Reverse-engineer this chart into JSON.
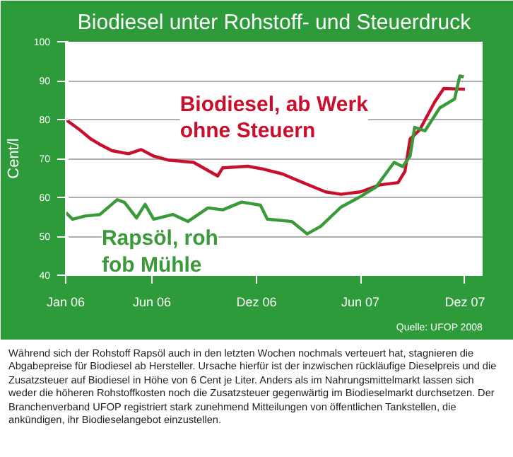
{
  "chart_data": {
    "type": "line",
    "title": "Biodiesel unter Rohstoff- und Steuerdruck",
    "ylabel": "Cent/l",
    "xlim": [
      "2006-01-01",
      "2008-01-01"
    ],
    "xticks": [
      {
        "value": "2006-01",
        "label": "Jan 06"
      },
      {
        "value": "2006-06",
        "label": "Jun 06"
      },
      {
        "value": "2006-12",
        "label": "Dez 06"
      },
      {
        "value": "2007-06",
        "label": "Jun 07"
      },
      {
        "value": "2007-12",
        "label": "Dez 07"
      }
    ],
    "ylim": [
      40,
      100
    ],
    "yticks": [
      40,
      50,
      60,
      70,
      80,
      90,
      100
    ],
    "grid": "y",
    "legend": false,
    "series": [
      {
        "name": "Biodiesel, ab Werk\nohne Steuern",
        "color": "#c8102e",
        "x": [
          "2006-01-01",
          "2006-01-26",
          "2006-02-14",
          "2006-03-02",
          "2006-03-23",
          "2006-04-21",
          "2006-05-13",
          "2006-06-04",
          "2006-06-29",
          "2006-08-13",
          "2006-09-24",
          "2006-10-03",
          "2006-11-16",
          "2006-12-12",
          "2007-01-16",
          "2007-02-20",
          "2007-04-01",
          "2007-04-28",
          "2007-06-01",
          "2007-07-05",
          "2007-08-06",
          "2007-08-18",
          "2007-08-27",
          "2007-09-13",
          "2007-10-09",
          "2007-10-25",
          "2007-12-01"
        ],
        "values": [
          80,
          77.3,
          75,
          73.6,
          72,
          71.2,
          72.3,
          70.6,
          69.6,
          69,
          65.5,
          67.6,
          68,
          67.3,
          66,
          63.8,
          61.4,
          60.8,
          61.4,
          63.2,
          63.8,
          66.7,
          75,
          77.4,
          84.5,
          88,
          87.8
        ]
      },
      {
        "name": "Rapsöl, roh\nfob Mühle",
        "color": "#3a9a3a",
        "x": [
          "2006-01-01",
          "2006-01-13",
          "2006-02-04",
          "2006-03-02",
          "2006-04-01",
          "2006-04-14",
          "2006-05-05",
          "2006-05-20",
          "2006-06-04",
          "2006-07-08",
          "2006-08-03",
          "2006-09-07",
          "2006-10-03",
          "2006-11-05",
          "2006-12-08",
          "2006-12-20",
          "2007-02-01",
          "2007-02-28",
          "2007-03-24",
          "2007-04-28",
          "2007-06-01",
          "2007-06-28",
          "2007-07-30",
          "2007-08-14",
          "2007-08-27",
          "2007-09-04",
          "2007-09-22",
          "2007-10-18",
          "2007-11-13",
          "2007-11-22",
          "2007-11-29"
        ],
        "values": [
          56.1,
          54.4,
          55.2,
          55.6,
          59.4,
          58.7,
          54.7,
          58.2,
          54.4,
          55.6,
          53.8,
          57.3,
          56.8,
          58.8,
          58,
          54.4,
          53.8,
          50.6,
          52.6,
          57.5,
          60.2,
          62.6,
          69,
          67.9,
          70.6,
          78,
          77.1,
          83,
          85.3,
          91.2,
          91
        ]
      }
    ],
    "annotations": [
      "Quelle: UFOP 2008",
      "Während sich der Rohstoff Rapsöl auch in den letzten Wochen nochmals verteuert hat, stagnieren die Abgabepreise für Biodiesel ab Hersteller. Ursache hierfür ist der inzwischen rückläufige Dieselpreis und die Zusatzsteuer auf Biodiesel in Höhe von 6 Cent je Liter. Anders als im Nahrungsmittelmarkt lassen sich weder die höheren Rohstoffkosten noch die Zusatzsteuer gegenwärtig im Biodieselmarkt durchsetzen. Der Branchenverband UFOP registriert stark zunehmend Mitteilungen von öffentlichen Tankstellen, die ankündigen, ihr Biodieselangebot einzustellen."
    ]
  }
}
